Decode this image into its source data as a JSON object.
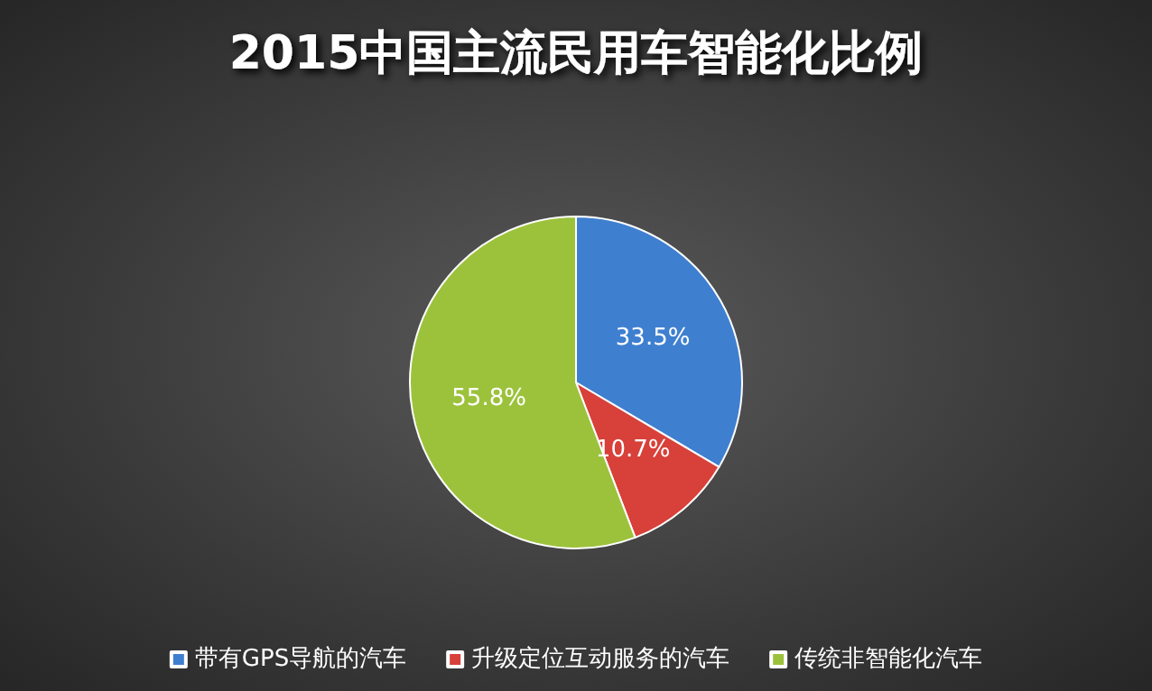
{
  "chart_data": {
    "type": "pie",
    "title": "2015中国主流民用车智能化比例",
    "categories": [
      "带有GPS导航的汽车",
      "升级定位互动服务的汽车",
      "传统非智能化汽车"
    ],
    "values": [
      33.5,
      10.7,
      55.8
    ],
    "colors": [
      "#3f7fd0",
      "#d8403a",
      "#9cc23c"
    ],
    "value_labels": [
      "33.5%",
      "10.7%",
      "55.8%"
    ],
    "legend": "bottom"
  }
}
